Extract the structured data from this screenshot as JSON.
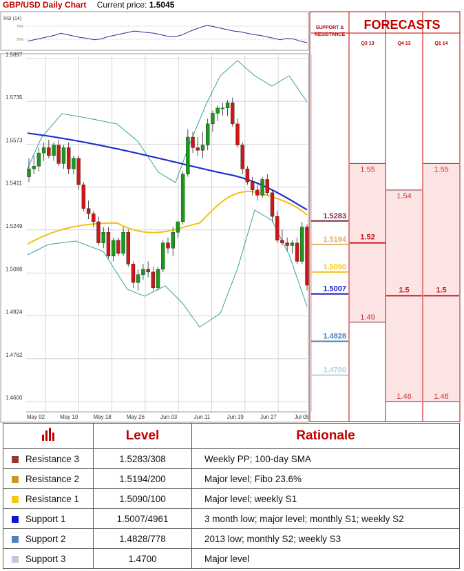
{
  "header": {
    "title": "GBP/USD Daily Chart",
    "price_label": "Current price:",
    "price_value": "1.5045"
  },
  "rsi": {
    "label": "RSI (14)",
    "levels": [
      "70%",
      "50%"
    ]
  },
  "panel": {
    "sr_title_line1": "SUPPORT &",
    "sr_title_line2": "RESISTANCE",
    "forecast_title": "FORECASTS",
    "quarters": [
      "Q3 13",
      "Q4 13",
      "Q1 14"
    ]
  },
  "chart_data": {
    "type": "candlestick",
    "title": "GBP/USD Daily Chart",
    "ylim": [
      1.46,
      1.5897
    ],
    "y_ticks": [
      "1.5897",
      "1.5735",
      "1.5573",
      "1.5411",
      "1.5249",
      "1.5086",
      "1.4924",
      "1.4762",
      "1.4600"
    ],
    "x_ticks": [
      "May 02",
      "May 10",
      "May 18",
      "May 26",
      "Jun 03",
      "Jun 11",
      "Jun 19",
      "Jun 27",
      "Jul 05"
    ],
    "current_price": 1.5045,
    "levels": [
      {
        "value": 1.5283,
        "label": "1.5283",
        "color": "#7b2a3b"
      },
      {
        "value": 1.5194,
        "label": "1.5194",
        "color": "#e0b070"
      },
      {
        "value": 1.509,
        "label": "1.5090",
        "color": "#f5c518"
      },
      {
        "value": 1.5007,
        "label": "1.5007",
        "color": "#1f1fc8"
      },
      {
        "value": 1.4828,
        "label": "1.4828",
        "color": "#4a7fb0"
      },
      {
        "value": 1.47,
        "label": "1.4700",
        "color": "#b9cfdc"
      }
    ],
    "forecasts": {
      "Q3 13": {
        "high": 1.55,
        "mid": 1.52,
        "low": 1.49,
        "high_label": "1.55",
        "mid_label": "1.52",
        "low_label": "1.49"
      },
      "Q4 13": {
        "high": 1.54,
        "mid": 1.5,
        "low": 1.46,
        "high_label": "1.54",
        "mid_label": "1.5",
        "low_label": "1.46"
      },
      "Q1 14": {
        "high": 1.55,
        "mid": 1.5,
        "low": 1.46,
        "high_label": "1.55",
        "mid_label": "1.5",
        "low_label": "1.46"
      }
    },
    "candles": [
      [
        1.545,
        1.552,
        1.543,
        1.548
      ],
      [
        1.548,
        1.553,
        1.546,
        1.549
      ],
      [
        1.549,
        1.556,
        1.547,
        1.554
      ],
      [
        1.554,
        1.558,
        1.551,
        1.556
      ],
      [
        1.556,
        1.559,
        1.552,
        1.553
      ],
      [
        1.553,
        1.558,
        1.551,
        1.557
      ],
      [
        1.557,
        1.559,
        1.549,
        1.55
      ],
      [
        1.55,
        1.557,
        1.548,
        1.556
      ],
      [
        1.556,
        1.558,
        1.546,
        1.548
      ],
      [
        1.548,
        1.553,
        1.546,
        1.552
      ],
      [
        1.552,
        1.553,
        1.54,
        1.542
      ],
      [
        1.542,
        1.543,
        1.532,
        1.533
      ],
      [
        1.533,
        1.536,
        1.529,
        1.531
      ],
      [
        1.531,
        1.532,
        1.526,
        1.528
      ],
      [
        1.528,
        1.53,
        1.519,
        1.52
      ],
      [
        1.52,
        1.526,
        1.518,
        1.524
      ],
      [
        1.524,
        1.526,
        1.514,
        1.515
      ],
      [
        1.515,
        1.522,
        1.513,
        1.521
      ],
      [
        1.521,
        1.522,
        1.515,
        1.516
      ],
      [
        1.516,
        1.526,
        1.515,
        1.524
      ],
      [
        1.524,
        1.525,
        1.511,
        1.512
      ],
      [
        1.512,
        1.513,
        1.503,
        1.505
      ],
      [
        1.505,
        1.51,
        1.502,
        1.508
      ],
      [
        1.508,
        1.512,
        1.506,
        1.51
      ],
      [
        1.51,
        1.513,
        1.507,
        1.509
      ],
      [
        1.509,
        1.511,
        1.502,
        1.503
      ],
      [
        1.503,
        1.511,
        1.502,
        1.51
      ],
      [
        1.51,
        1.521,
        1.509,
        1.52
      ],
      [
        1.52,
        1.522,
        1.516,
        1.518
      ],
      [
        1.518,
        1.526,
        1.515,
        1.524
      ],
      [
        1.524,
        1.528,
        1.522,
        1.528
      ],
      [
        1.528,
        1.547,
        1.527,
        1.546
      ],
      [
        1.546,
        1.563,
        1.545,
        1.56
      ],
      [
        1.56,
        1.562,
        1.554,
        1.556
      ],
      [
        1.556,
        1.56,
        1.553,
        1.555
      ],
      [
        1.555,
        1.562,
        1.552,
        1.557
      ],
      [
        1.557,
        1.567,
        1.555,
        1.565
      ],
      [
        1.565,
        1.57,
        1.562,
        1.569
      ],
      [
        1.569,
        1.572,
        1.566,
        1.571
      ],
      [
        1.571,
        1.573,
        1.568,
        1.571
      ],
      [
        1.571,
        1.574,
        1.568,
        1.573
      ],
      [
        1.573,
        1.575,
        1.564,
        1.565
      ],
      [
        1.565,
        1.567,
        1.556,
        1.557
      ],
      [
        1.557,
        1.558,
        1.546,
        1.548
      ],
      [
        1.548,
        1.549,
        1.542,
        1.543
      ],
      [
        1.543,
        1.545,
        1.538,
        1.54
      ],
      [
        1.54,
        1.542,
        1.536,
        1.538
      ],
      [
        1.538,
        1.545,
        1.537,
        1.544
      ],
      [
        1.544,
        1.546,
        1.538,
        1.539
      ],
      [
        1.539,
        1.54,
        1.528,
        1.53
      ],
      [
        1.53,
        1.532,
        1.52,
        1.521
      ],
      [
        1.521,
        1.525,
        1.519,
        1.52
      ],
      [
        1.52,
        1.522,
        1.517,
        1.519
      ],
      [
        1.519,
        1.521,
        1.516,
        1.52
      ],
      [
        1.52,
        1.522,
        1.512,
        1.513
      ],
      [
        1.513,
        1.528,
        1.512,
        1.526
      ],
      [
        1.526,
        1.527,
        1.502,
        1.504
      ]
    ],
    "sma_100": [
      1.5615,
      1.5445,
      1.5325
    ],
    "sma_50": [
      1.5195,
      1.5275,
      1.5205,
      1.5255,
      1.5395,
      1.5305
    ],
    "legend": []
  },
  "table": {
    "headers": [
      "Level",
      "Rationale"
    ],
    "header_icon": "bar-chart-icon",
    "rows": [
      {
        "name": "Resistance 3",
        "level": "1.5283/308",
        "rationale": "Weekly PP; 100-day SMA",
        "color": "#953735"
      },
      {
        "name": "Resistance 2",
        "level": "1.5194/200",
        "rationale": "Major level; Fibo 23.6%",
        "color": "#c89a1e"
      },
      {
        "name": "Resistance 1",
        "level": "1.5090/100",
        "rationale": "Major level; weekly S1",
        "color": "#f5c518"
      },
      {
        "name": "Support 1",
        "level": "1.5007/4961",
        "rationale": "3 month low; major level; monthly S1; weekly S2",
        "color": "#1010d0"
      },
      {
        "name": "Support 2",
        "level": "1.4828/778",
        "rationale": "2013 low; monthly S2; weekly S3",
        "color": "#4f81bd"
      },
      {
        "name": "Support 3",
        "level": "1.4700",
        "rationale": "Major level",
        "color": "#b8cce4"
      }
    ]
  }
}
